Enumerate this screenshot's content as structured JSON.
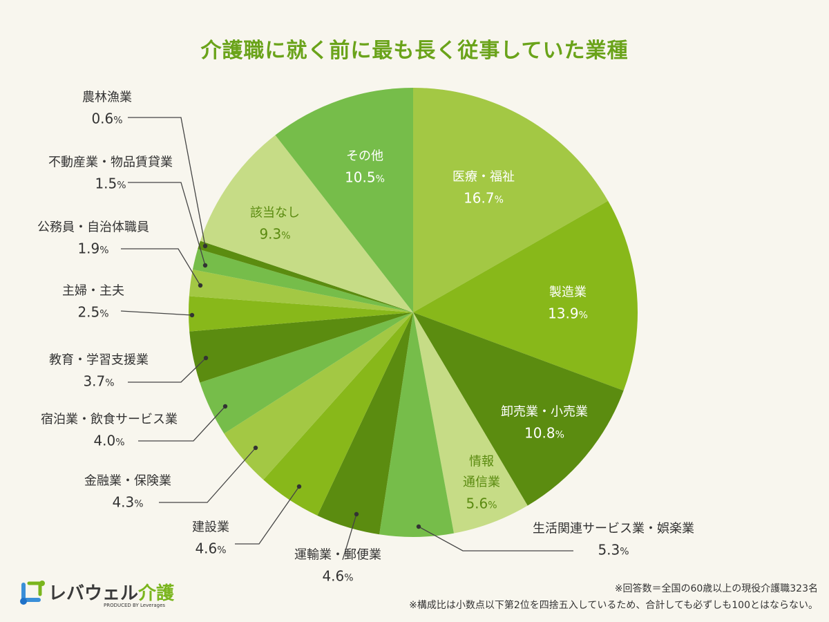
{
  "chart_data": {
    "type": "pie",
    "title": "介護職に就く前に最も長く従事していた業種",
    "unit": "%",
    "start": "top",
    "direction": "clockwise",
    "slices": [
      {
        "label": "医療・福祉",
        "value": 16.7,
        "color": "#a3c844"
      },
      {
        "label": "製造業",
        "value": 13.9,
        "color": "#88b81a"
      },
      {
        "label": "卸売業・小売業",
        "value": 10.8,
        "color": "#5b8c10"
      },
      {
        "label": "情報通信業",
        "value": 5.6,
        "color": "#c6dc86"
      },
      {
        "label": "生活関連サービス業・娯楽業",
        "value": 5.3,
        "color": "#76bd4a"
      },
      {
        "label": "運輸業・郵便業",
        "value": 4.6,
        "color": "#5b8c10"
      },
      {
        "label": "建設業",
        "value": 4.6,
        "color": "#88b81a"
      },
      {
        "label": "金融業・保険業",
        "value": 4.3,
        "color": "#a3c844"
      },
      {
        "label": "宿泊業・飲食サービス業",
        "value": 4.0,
        "color": "#76bd4a"
      },
      {
        "label": "教育・学習支援業",
        "value": 3.7,
        "color": "#5b8c10"
      },
      {
        "label": "主婦・主夫",
        "value": 2.5,
        "color": "#88b81a"
      },
      {
        "label": "公務員・自治体職員",
        "value": 1.9,
        "color": "#a3c844"
      },
      {
        "label": "不動産業・物品賃貸業",
        "value": 1.5,
        "color": "#76bd4a"
      },
      {
        "label": "農林漁業",
        "value": 0.6,
        "color": "#5b8c10"
      },
      {
        "label": "該当なし",
        "value": 9.3,
        "color": "#c6dc86"
      },
      {
        "label": "その他",
        "value": 10.5,
        "color": "#76bd4a"
      }
    ],
    "labels": {
      "info_l1": "情報",
      "info_l2": "通信業"
    },
    "values_text": [
      "16.7",
      "13.9",
      "10.8",
      "5.6",
      "5.3",
      "4.6",
      "4.6",
      "4.3",
      "4.0",
      "3.7",
      "2.5",
      "1.9",
      "1.5",
      "0.6",
      "9.3",
      "10.5"
    ],
    "pct": "%"
  },
  "notes": [
    "※回答数＝全国の60歳以上の現役介護職323名",
    "※構成比は小数点以下第2位を四捨五入しているため、合計しても必ずしも100とはならない。"
  ],
  "logo": {
    "name": "レバウェル",
    "name2": "介護",
    "by": "PRODUCED BY Leverages"
  }
}
